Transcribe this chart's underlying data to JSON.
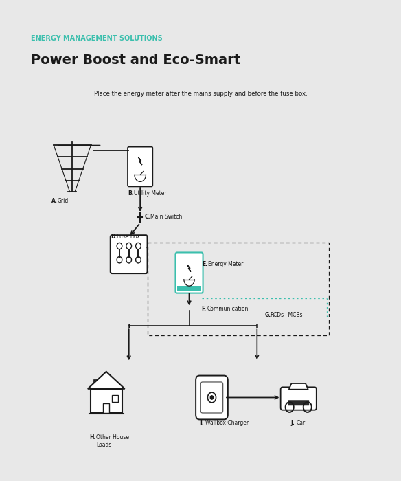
{
  "title_sub": "ENERGY MANAGEMENT SOLUTIONS",
  "title_main": "Power Boost and Eco-Smart",
  "subtitle": "Place the energy meter after the mains supply and before the fuse box.",
  "teal_color": "#3bbfad",
  "dark_color": "#1a1a1a",
  "gray_color": "#555555",
  "bg_color": "#e8e8e8",
  "white": "#ffffff",
  "labels": {
    "A": "Grid",
    "B": "Utility Meter",
    "C": "Main Switch",
    "D": "Fuse Box",
    "E": "Energy Meter",
    "F": "Communication",
    "G": "RCDs+MCBs",
    "H": "Other House\nLoads",
    "I": "Wallbox Charger",
    "J": "Car"
  }
}
